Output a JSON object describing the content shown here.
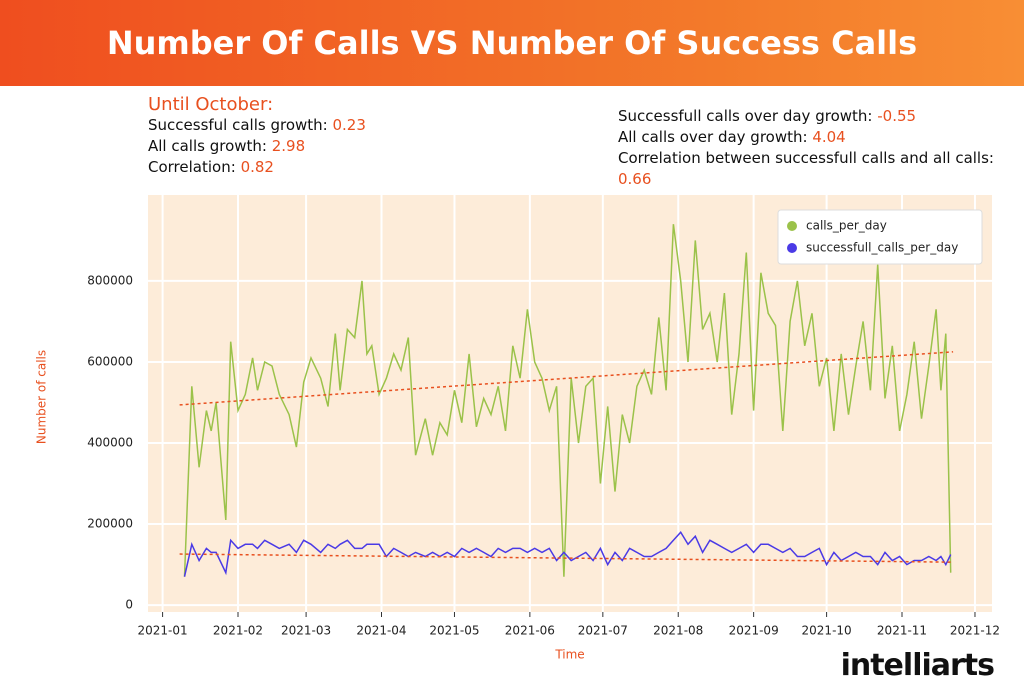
{
  "logo": "intelliarts",
  "chart_data": {
    "type": "line",
    "title": "Number Of Calls VS Number Of Success Calls",
    "notes_left": {
      "heading": "Until October:",
      "items": [
        {
          "label": "Successful calls growth:",
          "value": 0.23
        },
        {
          "label": "All calls growth:",
          "value": 2.98
        },
        {
          "label": "Correlation:",
          "value": 0.82
        }
      ]
    },
    "notes_right": {
      "items": [
        {
          "label": "Successfull calls over day growth:",
          "value": -0.55
        },
        {
          "label": "All calls over day growth:",
          "value": 4.04
        },
        {
          "label": "Correlation between successfull calls and all calls:",
          "value": 0.66
        }
      ]
    },
    "x_label": "Time",
    "y_label": "Number of calls",
    "xlim": [
      "2020-12-26",
      "2021-12-08"
    ],
    "xticks": [
      "2021-01",
      "2021-02",
      "2021-03",
      "2021-04",
      "2021-05",
      "2021-06",
      "2021-07",
      "2021-08",
      "2021-09",
      "2021-10",
      "2021-11",
      "2021-12"
    ],
    "ylim": [
      -17000,
      1012000
    ],
    "yticks": [
      0,
      200000,
      400000,
      600000,
      800000
    ],
    "grid": true,
    "legend": "upper right",
    "x": [
      "2021-01-10",
      "2021-01-13",
      "2021-01-16",
      "2021-01-19",
      "2021-01-21",
      "2021-01-23",
      "2021-01-27",
      "2021-01-29",
      "2021-02-01",
      "2021-02-04",
      "2021-02-07",
      "2021-02-09",
      "2021-02-12",
      "2021-02-15",
      "2021-02-18",
      "2021-02-22",
      "2021-02-25",
      "2021-02-28",
      "2021-03-03",
      "2021-03-07",
      "2021-03-10",
      "2021-03-13",
      "2021-03-15",
      "2021-03-18",
      "2021-03-21",
      "2021-03-24",
      "2021-03-26",
      "2021-03-28",
      "2021-03-31",
      "2021-04-03",
      "2021-04-06",
      "2021-04-09",
      "2021-04-12",
      "2021-04-15",
      "2021-04-19",
      "2021-04-22",
      "2021-04-25",
      "2021-04-28",
      "2021-05-01",
      "2021-05-04",
      "2021-05-07",
      "2021-05-10",
      "2021-05-13",
      "2021-05-16",
      "2021-05-19",
      "2021-05-22",
      "2021-05-25",
      "2021-05-28",
      "2021-05-31",
      "2021-06-03",
      "2021-06-06",
      "2021-06-09",
      "2021-06-12",
      "2021-06-15",
      "2021-06-18",
      "2021-06-21",
      "2021-06-24",
      "2021-06-27",
      "2021-06-30",
      "2021-07-03",
      "2021-07-06",
      "2021-07-09",
      "2021-07-12",
      "2021-07-15",
      "2021-07-18",
      "2021-07-21",
      "2021-07-24",
      "2021-07-27",
      "2021-07-30",
      "2021-08-02",
      "2021-08-05",
      "2021-08-08",
      "2021-08-11",
      "2021-08-14",
      "2021-08-17",
      "2021-08-20",
      "2021-08-23",
      "2021-08-26",
      "2021-08-29",
      "2021-09-01",
      "2021-09-04",
      "2021-09-07",
      "2021-09-10",
      "2021-09-13",
      "2021-09-16",
      "2021-09-19",
      "2021-09-22",
      "2021-09-25",
      "2021-09-28",
      "2021-10-01",
      "2021-10-04",
      "2021-10-07",
      "2021-10-10",
      "2021-10-13",
      "2021-10-16",
      "2021-10-19",
      "2021-10-22",
      "2021-10-25",
      "2021-10-28",
      "2021-10-31",
      "2021-11-03",
      "2021-11-06",
      "2021-11-09",
      "2021-11-12",
      "2021-11-15",
      "2021-11-17",
      "2021-11-19",
      "2021-11-21"
    ],
    "series": [
      {
        "name": "calls_per_day",
        "color": "#9bc24a",
        "values": [
          70000,
          540000,
          340000,
          480000,
          430000,
          500000,
          210000,
          650000,
          480000,
          520000,
          610000,
          530000,
          600000,
          590000,
          520000,
          470000,
          390000,
          550000,
          610000,
          560000,
          490000,
          670000,
          530000,
          680000,
          660000,
          800000,
          620000,
          640000,
          520000,
          560000,
          620000,
          580000,
          660000,
          370000,
          460000,
          370000,
          450000,
          420000,
          530000,
          450000,
          620000,
          440000,
          510000,
          470000,
          540000,
          430000,
          640000,
          560000,
          730000,
          600000,
          560000,
          480000,
          540000,
          70000,
          560000,
          400000,
          540000,
          560000,
          300000,
          490000,
          280000,
          470000,
          400000,
          540000,
          580000,
          520000,
          710000,
          530000,
          940000,
          800000,
          600000,
          900000,
          680000,
          720000,
          600000,
          770000,
          470000,
          620000,
          870000,
          480000,
          820000,
          720000,
          690000,
          430000,
          700000,
          800000,
          640000,
          720000,
          540000,
          610000,
          430000,
          620000,
          470000,
          590000,
          700000,
          530000,
          840000,
          510000,
          640000,
          430000,
          520000,
          650000,
          460000,
          590000,
          730000,
          530000,
          670000,
          80000
        ]
      },
      {
        "name": "successfull_calls_per_day",
        "color": "#4a3ae6",
        "values": [
          70000,
          150000,
          110000,
          140000,
          130000,
          130000,
          80000,
          160000,
          140000,
          150000,
          150000,
          140000,
          160000,
          150000,
          140000,
          150000,
          130000,
          160000,
          150000,
          130000,
          150000,
          140000,
          150000,
          160000,
          140000,
          140000,
          150000,
          150000,
          150000,
          120000,
          140000,
          130000,
          120000,
          130000,
          120000,
          130000,
          120000,
          130000,
          120000,
          140000,
          130000,
          140000,
          130000,
          120000,
          140000,
          130000,
          140000,
          140000,
          130000,
          140000,
          130000,
          140000,
          110000,
          130000,
          110000,
          120000,
          130000,
          110000,
          140000,
          100000,
          130000,
          110000,
          140000,
          130000,
          120000,
          120000,
          130000,
          140000,
          160000,
          180000,
          150000,
          170000,
          130000,
          160000,
          150000,
          140000,
          130000,
          140000,
          150000,
          130000,
          150000,
          150000,
          140000,
          130000,
          140000,
          120000,
          120000,
          130000,
          140000,
          100000,
          130000,
          110000,
          120000,
          130000,
          120000,
          120000,
          100000,
          130000,
          110000,
          120000,
          100000,
          110000,
          110000,
          120000,
          110000,
          120000,
          100000,
          125000
        ]
      }
    ],
    "trendlines": [
      {
        "color": "#e8501f",
        "x": [
          "2021-01-08",
          "2021-11-22"
        ],
        "values": [
          494000,
          625000
        ]
      },
      {
        "color": "#e8501f",
        "x": [
          "2021-01-08",
          "2021-11-22"
        ],
        "values": [
          126000,
          106000
        ]
      }
    ]
  }
}
